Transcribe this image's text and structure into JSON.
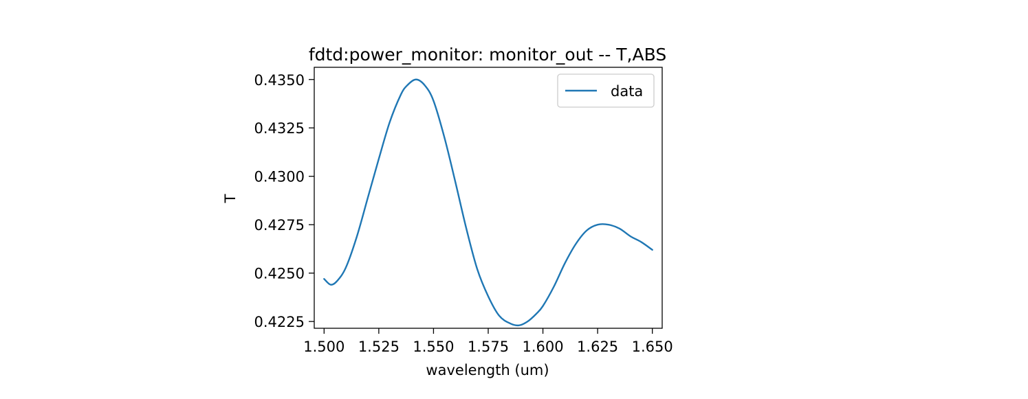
{
  "chart_data": {
    "type": "line",
    "title": "fdtd:power_monitor: monitor_out -- T,ABS",
    "xlabel": "wavelength (um)",
    "ylabel": "T",
    "xlim": [
      1.4955,
      1.6545
    ],
    "ylim": [
      0.42215,
      0.43563
    ],
    "xticks": [
      1.5,
      1.525,
      1.55,
      1.575,
      1.6,
      1.625,
      1.65
    ],
    "xtick_labels": [
      "1.500",
      "1.525",
      "1.550",
      "1.575",
      "1.600",
      "1.625",
      "1.650"
    ],
    "yticks": [
      0.4225,
      0.425,
      0.4275,
      0.43,
      0.4325,
      0.435
    ],
    "ytick_labels": [
      "0.4225",
      "0.4250",
      "0.4275",
      "0.4300",
      "0.4325",
      "0.4350"
    ],
    "legend_position": "upper-right",
    "grid": false,
    "series": [
      {
        "name": "data",
        "color": "#1f77b4",
        "x": [
          1.5,
          1.503,
          1.506,
          1.51,
          1.515,
          1.52,
          1.525,
          1.53,
          1.535,
          1.538,
          1.542,
          1.546,
          1.55,
          1.555,
          1.56,
          1.565,
          1.57,
          1.575,
          1.58,
          1.585,
          1.589,
          1.593,
          1.597,
          1.6,
          1.605,
          1.61,
          1.615,
          1.62,
          1.625,
          1.63,
          1.635,
          1.64,
          1.645,
          1.65
        ],
        "y": [
          0.4247,
          0.4244,
          0.4246,
          0.4253,
          0.4269,
          0.4289,
          0.4309,
          0.4328,
          0.4342,
          0.4347,
          0.435,
          0.4347,
          0.4339,
          0.432,
          0.4297,
          0.4273,
          0.4252,
          0.4238,
          0.4228,
          0.4224,
          0.4223,
          0.4225,
          0.4229,
          0.4233,
          0.4243,
          0.4255,
          0.4265,
          0.4272,
          0.4275,
          0.4275,
          0.4273,
          0.4269,
          0.4266,
          0.4262
        ]
      }
    ]
  }
}
